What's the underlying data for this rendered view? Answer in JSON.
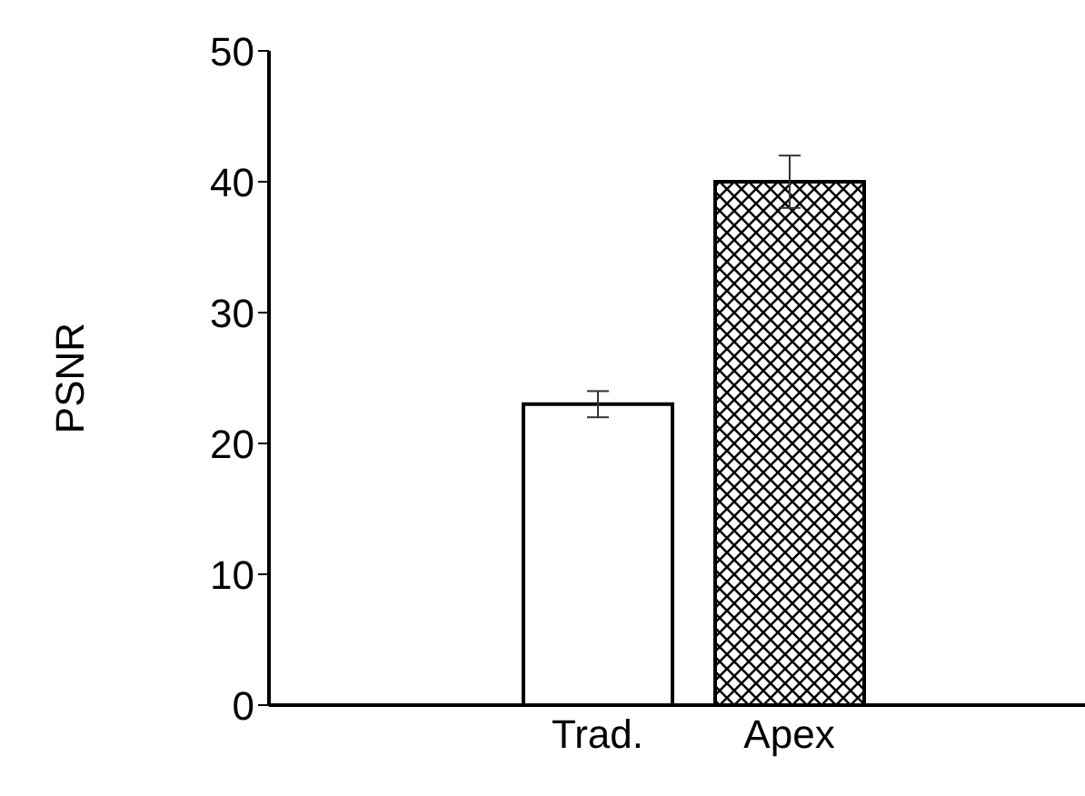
{
  "chart_data": {
    "type": "bar",
    "ylabel": "PSNR",
    "categories": [
      "Trad.",
      "Apex"
    ],
    "values": [
      23,
      40
    ],
    "errors": [
      1,
      2
    ],
    "colors": [
      "#ffffff",
      "#000000"
    ],
    "ylim": [
      0,
      50
    ],
    "yticks": [
      0,
      10,
      20,
      30,
      40,
      50
    ],
    "grid": false
  }
}
